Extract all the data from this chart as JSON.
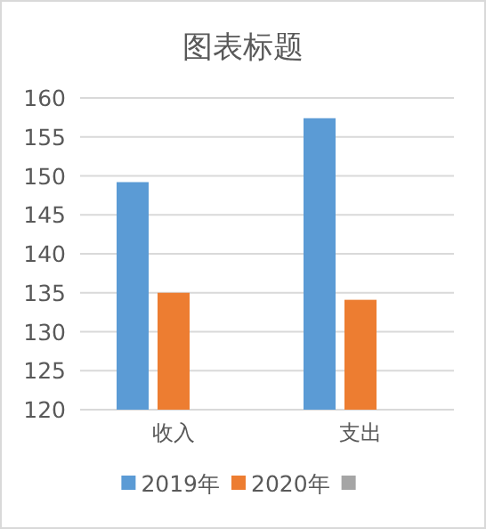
{
  "chart_data": {
    "type": "bar",
    "title": "图表标题",
    "categories": [
      "收入",
      "支出"
    ],
    "series": [
      {
        "name": "2019年",
        "color": "#5b9bd5",
        "values": [
          149.2,
          157.4
        ]
      },
      {
        "name": "2020年",
        "color": "#ed7d31",
        "values": [
          135.0,
          134.1
        ]
      },
      {
        "color": "#a5a5a5",
        "values": [
          null,
          null
        ]
      }
    ],
    "ylim": [
      120,
      160
    ],
    "yticks": [
      120,
      125,
      130,
      135,
      140,
      145,
      150,
      155,
      160
    ],
    "grid": "y",
    "legend": "bottom"
  }
}
